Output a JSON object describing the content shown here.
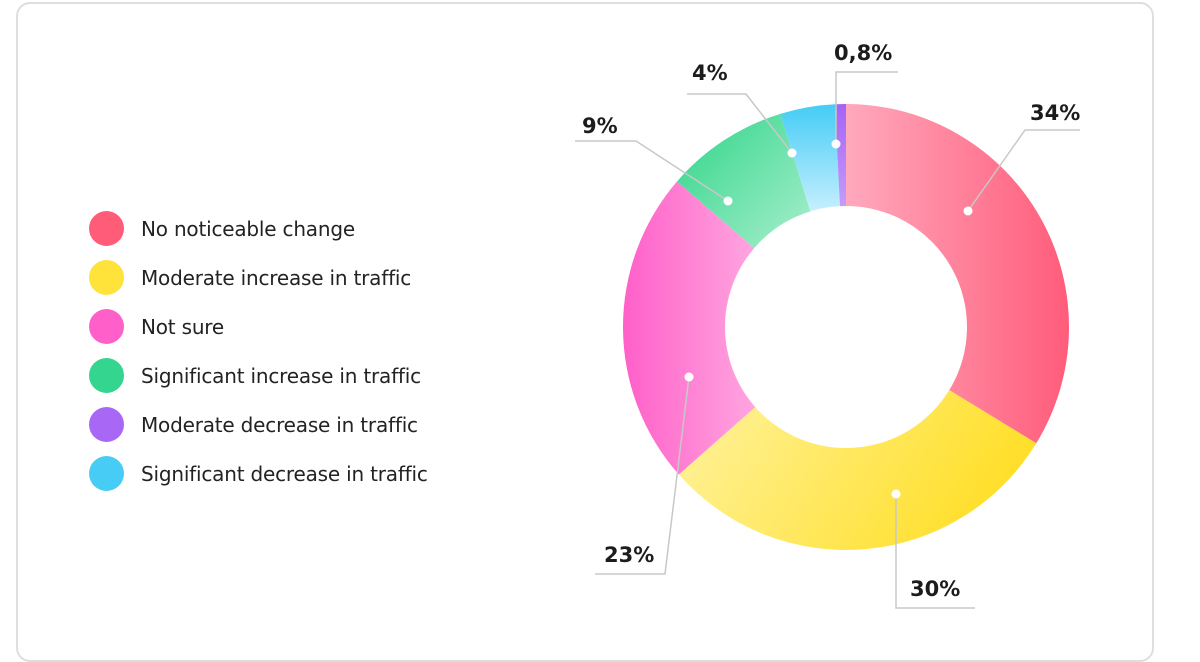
{
  "chart_data": {
    "type": "pie",
    "variant": "donut",
    "title": "",
    "categories": [
      "No noticeable change",
      "Moderate increase in traffic",
      "Not sure",
      "Significant increase in traffic",
      "Significant decrease in traffic",
      "Moderate decrease in traffic"
    ],
    "values": [
      34,
      30,
      23,
      9,
      4,
      0.8
    ],
    "labels": [
      "34%",
      "30%",
      "23%",
      "9%",
      "4%",
      "0,8%"
    ],
    "colors": [
      "#ff5c7a",
      "#ffe23a",
      "#ff5fc8",
      "#34d58e",
      "#47cdf5",
      "#a868f5"
    ],
    "start_angle": "12 o'clock, clockwise",
    "legend_position": "left"
  },
  "legend": {
    "items": [
      {
        "label": "No noticeable change",
        "color": "#ff5c7a"
      },
      {
        "label": "Moderate increase in traffic",
        "color": "#ffe23a"
      },
      {
        "label": "Not sure",
        "color": "#ff5fc8"
      },
      {
        "label": "Significant increase in traffic",
        "color": "#34d58e"
      },
      {
        "label": "Moderate decrease in traffic",
        "color": "#a868f5"
      },
      {
        "label": "Significant decrease in traffic",
        "color": "#47cdf5"
      }
    ]
  },
  "callouts": {
    "red": "34%",
    "yellow": "30%",
    "pink": "23%",
    "green": "9%",
    "blue": "4%",
    "purple": "0,8%"
  }
}
